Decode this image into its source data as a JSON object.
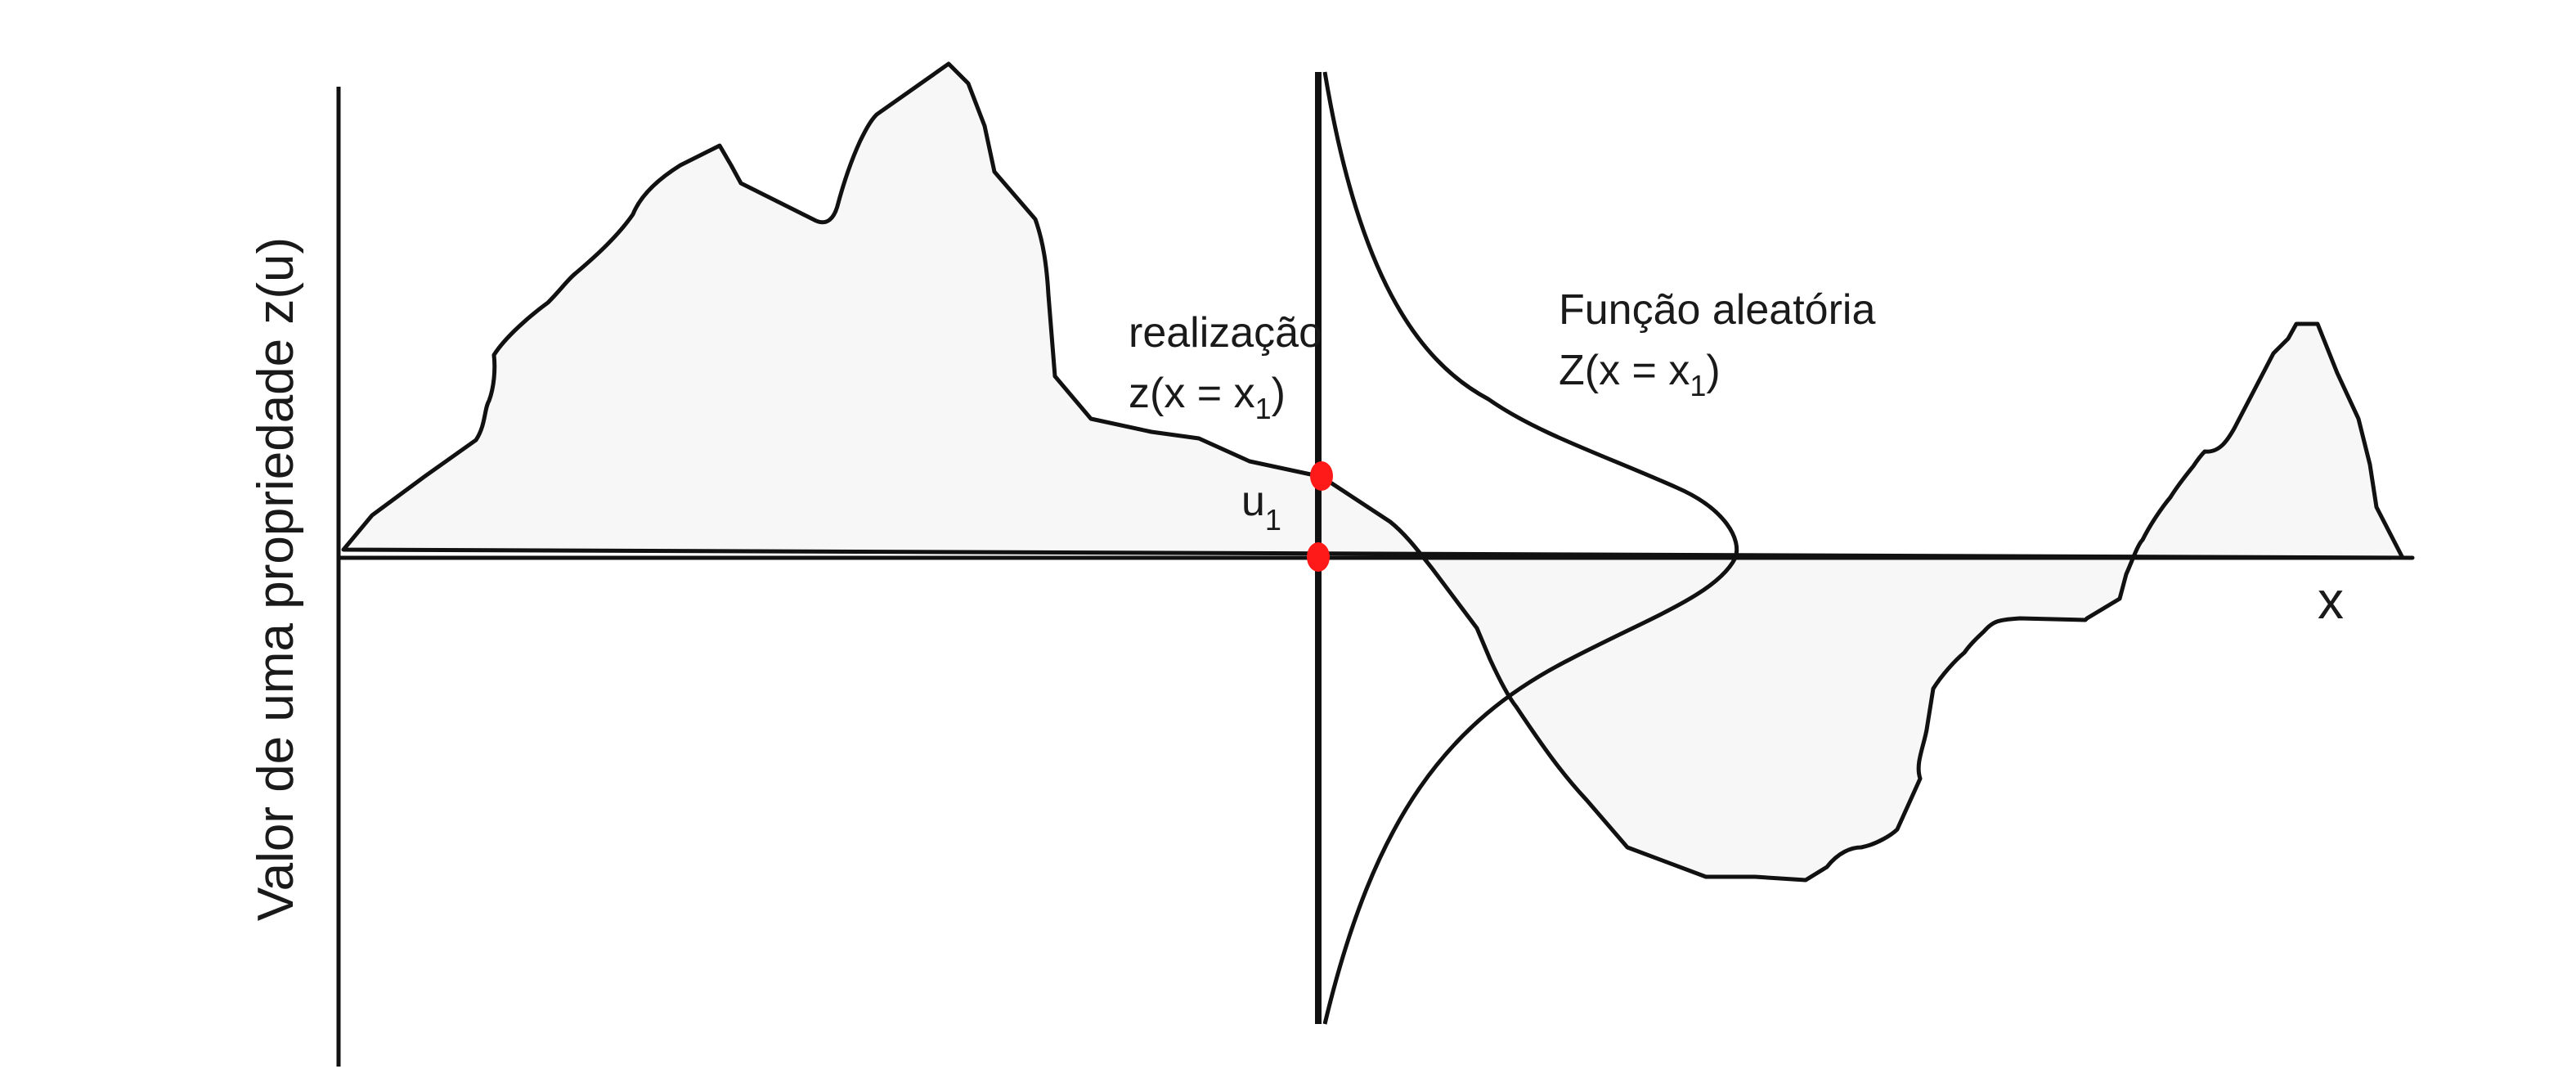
{
  "y_axis_label": "Valor de uma propriedade z(u)",
  "x_axis_label": "x",
  "realization": {
    "title": "realização",
    "prefix": "z(x = x",
    "subscript": "1",
    "suffix": ")"
  },
  "random_function": {
    "title": "Função aleatória",
    "prefix": "Z(x = x",
    "subscript": "1",
    "suffix": ")"
  },
  "location": {
    "main": "u",
    "subscript": "1"
  },
  "colors": {
    "line": "#111111",
    "fill": "#f7f7f7",
    "marker": "#ff1a1a",
    "background": "#ffffff"
  }
}
